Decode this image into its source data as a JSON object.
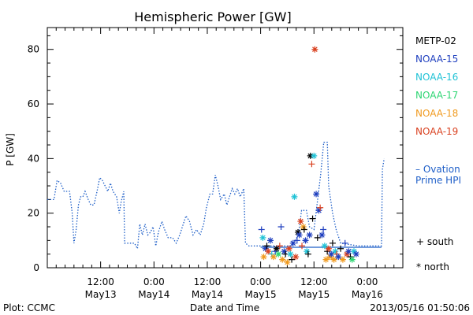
{
  "chart_data": {
    "type": "scatter",
    "title": "Hemispheric Power [GW]",
    "xlabel": "Date and Time",
    "ylabel": "P [GW]",
    "ylim": [
      0,
      88
    ],
    "y_ticks": [
      0,
      20,
      40,
      60,
      80
    ],
    "x_range_hours": [
      0,
      80
    ],
    "x_ticks": [
      {
        "h": 12,
        "time": "12:00",
        "date": "May13"
      },
      {
        "h": 24,
        "time": "0:00",
        "date": "May14"
      },
      {
        "h": 36,
        "time": "12:00",
        "date": "May14"
      },
      {
        "h": 48,
        "time": "0:00",
        "date": "May15"
      },
      {
        "h": 60,
        "time": "12:00",
        "date": "May15"
      },
      {
        "h": 72,
        "time": "0:00",
        "date": "May16"
      }
    ],
    "footer_left": "Plot: CCMC",
    "footer_right": "2013/05/16 01:50:06",
    "legend": [
      {
        "name": "METP-02",
        "color": "#000000"
      },
      {
        "name": "NOAA-15",
        "color": "#1f3fbf"
      },
      {
        "name": "NOAA-16",
        "color": "#1fc2d6"
      },
      {
        "name": "NOAA-17",
        "color": "#2ed673"
      },
      {
        "name": "NOAA-18",
        "color": "#f09a1f"
      },
      {
        "name": "NOAA-19",
        "color": "#d9401f"
      }
    ],
    "ovation_label_1": "– Ovation",
    "ovation_label_2": "Prime HPI",
    "marker_south": "+ south",
    "marker_north": "* north",
    "ovation_color": "#1f5fc8",
    "ovation_series": [
      [
        0,
        25
      ],
      [
        1.5,
        25
      ],
      [
        2.2,
        32
      ],
      [
        3,
        31
      ],
      [
        3.8,
        28
      ],
      [
        5,
        28
      ],
      [
        5.6,
        20
      ],
      [
        6,
        9
      ],
      [
        6.5,
        14
      ],
      [
        7,
        23
      ],
      [
        7.5,
        26
      ],
      [
        8,
        26
      ],
      [
        8.5,
        28
      ],
      [
        9.2,
        25
      ],
      [
        9.8,
        23
      ],
      [
        10.5,
        23
      ],
      [
        11.2,
        28
      ],
      [
        11.8,
        33
      ],
      [
        12.4,
        32
      ],
      [
        13,
        30
      ],
      [
        13.6,
        28
      ],
      [
        14.2,
        31
      ],
      [
        14.8,
        28
      ],
      [
        15.6,
        26
      ],
      [
        16.2,
        20
      ],
      [
        16.6,
        24
      ],
      [
        17.2,
        28
      ],
      [
        17.4,
        9
      ],
      [
        18.5,
        9
      ],
      [
        19.6,
        9
      ],
      [
        20.3,
        7
      ],
      [
        20.8,
        16
      ],
      [
        21.4,
        12
      ],
      [
        22,
        16
      ],
      [
        22.6,
        12
      ],
      [
        23.2,
        13
      ],
      [
        23.8,
        15
      ],
      [
        24.4,
        8
      ],
      [
        25,
        13
      ],
      [
        25.8,
        17
      ],
      [
        26.4,
        14
      ],
      [
        27.2,
        11
      ],
      [
        28.2,
        11
      ],
      [
        29,
        9
      ],
      [
        29.8,
        12
      ],
      [
        30.6,
        16
      ],
      [
        31.2,
        19
      ],
      [
        32,
        17
      ],
      [
        32.8,
        12
      ],
      [
        33.6,
        14
      ],
      [
        34.4,
        12
      ],
      [
        35.2,
        16
      ],
      [
        35.8,
        22
      ],
      [
        36.6,
        27
      ],
      [
        37.2,
        27
      ],
      [
        37.8,
        34
      ],
      [
        38.4,
        30
      ],
      [
        39,
        25
      ],
      [
        39.8,
        27
      ],
      [
        40.4,
        23
      ],
      [
        41,
        26
      ],
      [
        41.6,
        29
      ],
      [
        42.2,
        27
      ],
      [
        42.8,
        29
      ],
      [
        43.4,
        26
      ],
      [
        44.2,
        29
      ],
      [
        44.6,
        9
      ],
      [
        45.4,
        8
      ],
      [
        47,
        8
      ],
      [
        50,
        8
      ],
      [
        53,
        8
      ],
      [
        55,
        8
      ],
      [
        56.5,
        12
      ],
      [
        57.2,
        21
      ],
      [
        58.3,
        21
      ],
      [
        59,
        15
      ],
      [
        60,
        14
      ],
      [
        61.5,
        34
      ],
      [
        62.2,
        46
      ],
      [
        63,
        46
      ],
      [
        63.3,
        30
      ],
      [
        64.2,
        20
      ],
      [
        65,
        14
      ],
      [
        66,
        9
      ],
      [
        70,
        8
      ],
      [
        74,
        8
      ],
      [
        75.2,
        8
      ],
      [
        75.4,
        36
      ],
      [
        75.8,
        40
      ]
    ],
    "ovation_flat": [
      [
        48,
        7.5
      ],
      [
        75.2,
        7.5
      ]
    ],
    "points": [
      {
        "h": 48.2,
        "p": 14,
        "m": "+",
        "s": "NOAA-15"
      },
      {
        "h": 48.5,
        "p": 11,
        "m": "*",
        "s": "NOAA-16"
      },
      {
        "h": 48.7,
        "p": 4,
        "m": "*",
        "s": "NOAA-18"
      },
      {
        "h": 49.1,
        "p": 7,
        "m": "*",
        "s": "NOAA-15"
      },
      {
        "h": 49.4,
        "p": 8,
        "m": "+",
        "s": "METP-02"
      },
      {
        "h": 49.7,
        "p": 6,
        "m": "*",
        "s": "NOAA-19"
      },
      {
        "h": 50.2,
        "p": 10,
        "m": "*",
        "s": "NOAA-15"
      },
      {
        "h": 50.5,
        "p": 5,
        "m": "+",
        "s": "NOAA-16"
      },
      {
        "h": 50.9,
        "p": 4,
        "m": "*",
        "s": "NOAA-18"
      },
      {
        "h": 51.3,
        "p": 6,
        "m": "+",
        "s": "NOAA-15"
      },
      {
        "h": 51.6,
        "p": 7,
        "m": "*",
        "s": "METP-02"
      },
      {
        "h": 52,
        "p": 5,
        "m": "*",
        "s": "NOAA-17"
      },
      {
        "h": 52.3,
        "p": 8,
        "m": "+",
        "s": "NOAA-19"
      },
      {
        "h": 52.6,
        "p": 15,
        "m": "+",
        "s": "NOAA-15"
      },
      {
        "h": 52.9,
        "p": 3,
        "m": "*",
        "s": "NOAA-18"
      },
      {
        "h": 53.3,
        "p": 6,
        "m": "*",
        "s": "NOAA-15"
      },
      {
        "h": 53.6,
        "p": 5,
        "m": "+",
        "s": "METP-02"
      },
      {
        "h": 54,
        "p": 2,
        "m": "*",
        "s": "NOAA-18"
      },
      {
        "h": 54.4,
        "p": 7,
        "m": "*",
        "s": "NOAA-19"
      },
      {
        "h": 54.7,
        "p": 5,
        "m": "*",
        "s": "NOAA-16"
      },
      {
        "h": 55,
        "p": 3,
        "m": "+",
        "s": "METP-02"
      },
      {
        "h": 55.3,
        "p": 9,
        "m": "*",
        "s": "NOAA-15"
      },
      {
        "h": 55.6,
        "p": 26,
        "m": "*",
        "s": "NOAA-16"
      },
      {
        "h": 55.9,
        "p": 4,
        "m": "*",
        "s": "NOAA-19"
      },
      {
        "h": 56.2,
        "p": 10,
        "m": "+",
        "s": "NOAA-15"
      },
      {
        "h": 56.4,
        "p": 13,
        "m": "*",
        "s": "METP-02"
      },
      {
        "h": 56.7,
        "p": 12,
        "m": "*",
        "s": "NOAA-15"
      },
      {
        "h": 57,
        "p": 17,
        "m": "*",
        "s": "NOAA-19"
      },
      {
        "h": 57.3,
        "p": 8,
        "m": "+",
        "s": "NOAA-19"
      },
      {
        "h": 57.6,
        "p": 15,
        "m": "*",
        "s": "NOAA-18"
      },
      {
        "h": 57.8,
        "p": 14,
        "m": "+",
        "s": "METP-02"
      },
      {
        "h": 58.1,
        "p": 10,
        "m": "*",
        "s": "NOAA-15"
      },
      {
        "h": 58.4,
        "p": 6,
        "m": "*",
        "s": "NOAA-16"
      },
      {
        "h": 58.7,
        "p": 5,
        "m": "+",
        "s": "METP-02"
      },
      {
        "h": 59,
        "p": 12,
        "m": "*",
        "s": "NOAA-15"
      },
      {
        "h": 59.2,
        "p": 41,
        "m": "*",
        "s": "METP-02"
      },
      {
        "h": 59.5,
        "p": 38,
        "m": "+",
        "s": "NOAA-19"
      },
      {
        "h": 59.7,
        "p": 18,
        "m": "+",
        "s": "METP-02"
      },
      {
        "h": 60,
        "p": 41,
        "m": "*",
        "s": "NOAA-16"
      },
      {
        "h": 60.2,
        "p": 80,
        "m": "*",
        "s": "NOAA-19"
      },
      {
        "h": 60.5,
        "p": 27,
        "m": "*",
        "s": "NOAA-15"
      },
      {
        "h": 60.8,
        "p": 11,
        "m": "+",
        "s": "METP-02"
      },
      {
        "h": 61.1,
        "p": 21,
        "m": "*",
        "s": "NOAA-15"
      },
      {
        "h": 61.4,
        "p": 22,
        "m": "+",
        "s": "NOAA-19"
      },
      {
        "h": 61.8,
        "p": 12,
        "m": "*",
        "s": "NOAA-15"
      },
      {
        "h": 62.1,
        "p": 14,
        "m": "+",
        "s": "NOAA-15"
      },
      {
        "h": 62.4,
        "p": 8,
        "m": "*",
        "s": "NOAA-16"
      },
      {
        "h": 62.7,
        "p": 3,
        "m": "*",
        "s": "NOAA-18"
      },
      {
        "h": 63,
        "p": 6,
        "m": "+",
        "s": "METP-02"
      },
      {
        "h": 63.3,
        "p": 7,
        "m": "*",
        "s": "NOAA-19"
      },
      {
        "h": 63.6,
        "p": 4,
        "m": "*",
        "s": "NOAA-18"
      },
      {
        "h": 63.9,
        "p": 5,
        "m": "*",
        "s": "NOAA-15"
      },
      {
        "h": 64.2,
        "p": 9,
        "m": "+",
        "s": "METP-02"
      },
      {
        "h": 64.5,
        "p": 3,
        "m": "*",
        "s": "NOAA-18"
      },
      {
        "h": 64.8,
        "p": 6,
        "m": "*",
        "s": "NOAA-16"
      },
      {
        "h": 65.1,
        "p": 5,
        "m": "+",
        "s": "NOAA-19"
      },
      {
        "h": 65.5,
        "p": 4,
        "m": "*",
        "s": "NOAA-15"
      },
      {
        "h": 66,
        "p": 7,
        "m": "+",
        "s": "METP-02"
      },
      {
        "h": 66.5,
        "p": 3,
        "m": "*",
        "s": "NOAA-18"
      },
      {
        "h": 67,
        "p": 9,
        "m": "+",
        "s": "NOAA-15"
      },
      {
        "h": 67.4,
        "p": 5,
        "m": "*",
        "s": "NOAA-19"
      },
      {
        "h": 67.8,
        "p": 6,
        "m": "*",
        "s": "NOAA-15"
      },
      {
        "h": 68.2,
        "p": 4,
        "m": "+",
        "s": "METP-02"
      },
      {
        "h": 68.6,
        "p": 3,
        "m": "*",
        "s": "NOAA-17"
      },
      {
        "h": 69,
        "p": 6,
        "m": "*",
        "s": "NOAA-16"
      },
      {
        "h": 69.5,
        "p": 5,
        "m": "*",
        "s": "NOAA-15"
      }
    ]
  }
}
